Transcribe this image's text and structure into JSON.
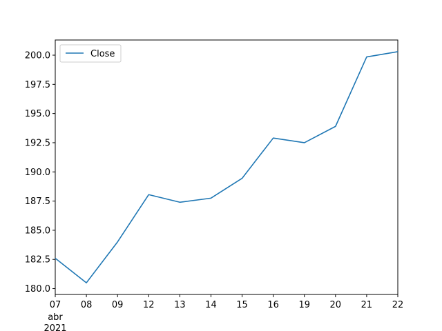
{
  "chart_data": {
    "type": "line",
    "x": [
      "07",
      "08",
      "09",
      "12",
      "13",
      "14",
      "15",
      "16",
      "19",
      "20",
      "21",
      "22"
    ],
    "x_sublabel": [
      "abr",
      "2021"
    ],
    "series": [
      {
        "name": "Close",
        "color": "#1f77b4",
        "values": [
          182.6,
          180.5,
          184.0,
          188.05,
          187.4,
          187.75,
          189.45,
          192.9,
          192.5,
          193.9,
          199.85,
          200.3
        ]
      }
    ],
    "yticks": [
      "180.0",
      "182.5",
      "185.0",
      "187.5",
      "190.0",
      "192.5",
      "195.0",
      "197.5",
      "200.0"
    ],
    "ylim": [
      179.5,
      201.3
    ],
    "legend": {
      "position": "top-left",
      "label": "Close"
    },
    "grid": false
  }
}
